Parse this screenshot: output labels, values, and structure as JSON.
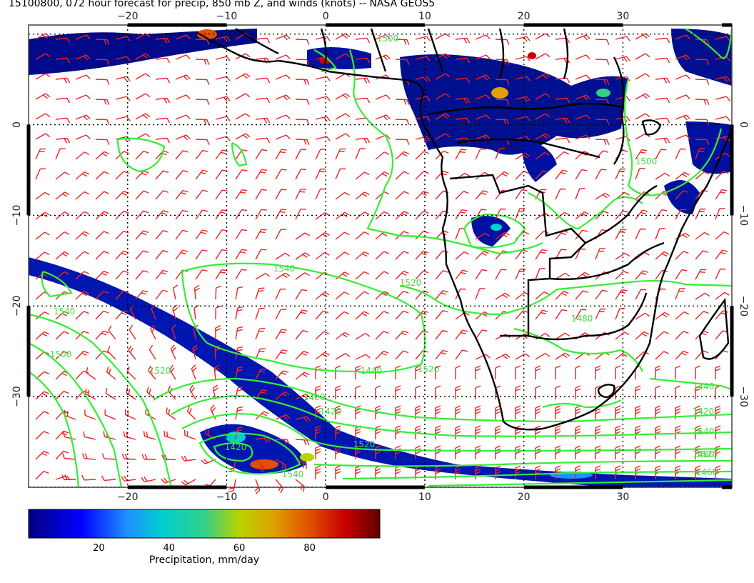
{
  "title": "15100800, 072 hour forecast for precip, 850 mb Z, and winds (knots) -- NASA GEOS5",
  "chart_data": {
    "type": "map",
    "lon_range": [
      -30,
      41
    ],
    "lat_range": [
      -40,
      11
    ],
    "lon_ticks": [
      -20,
      -10,
      0,
      10,
      20,
      30
    ],
    "lat_ticks": [
      0,
      -10,
      -20,
      -30
    ],
    "lon_tick_labels": [
      "−20",
      "−10",
      "0",
      "10",
      "20",
      "30"
    ],
    "lat_tick_labels": [
      "0",
      "−10",
      "−20",
      "−30"
    ],
    "grid": true,
    "contour_labels": [
      "1540",
      "1520",
      "1500",
      "1520",
      "1540",
      "1520",
      "1500",
      "1480",
      "1460",
      "1440",
      "1420",
      "1540",
      "1480",
      "1460",
      "1440",
      "1420",
      "1420",
      "1520",
      "1540",
      "1520",
      "1500"
    ],
    "contour_color": "#33ee33",
    "wind_barb_color": "#ee2222",
    "coastline_color": "#000000"
  },
  "colorbar": {
    "title": "Precipitation, mm/day",
    "ticks": [
      20,
      40,
      60,
      80
    ],
    "range": [
      0,
      100
    ],
    "colors": [
      "#00007f",
      "#0000ff",
      "#1e90ff",
      "#00cfd0",
      "#33d08a",
      "#b8d400",
      "#e0a000",
      "#e05000",
      "#c80000",
      "#600000"
    ]
  }
}
